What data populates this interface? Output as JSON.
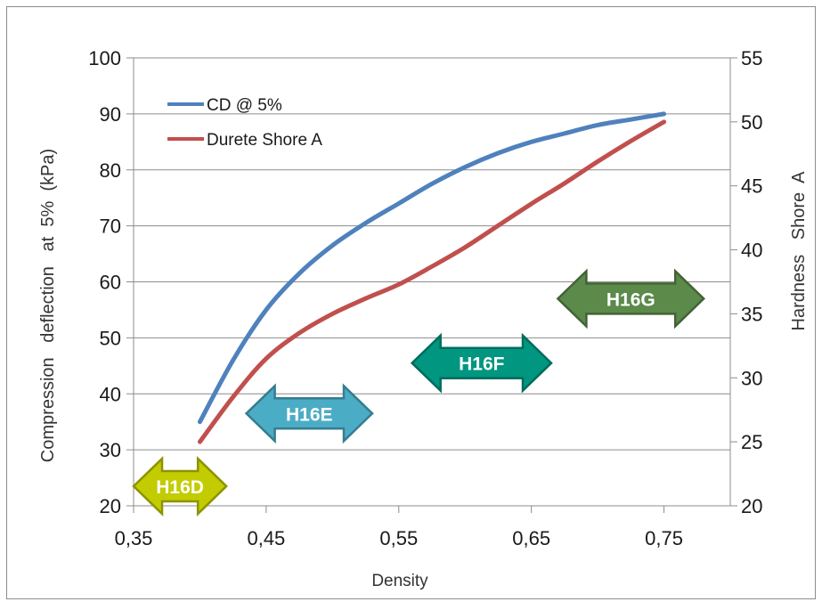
{
  "chart_data": {
    "type": "line",
    "xlabel": "Density",
    "ylabel_left": "Compression   deflection   at  5%  (kPa)",
    "ylabel_right": "Hardness   Shore  A",
    "xlim": [
      0.35,
      0.8
    ],
    "xticks": [
      0.35,
      0.45,
      0.55,
      0.65,
      0.75
    ],
    "xtick_labels": [
      "0,35",
      "0,45",
      "0,55",
      "0,65",
      "0,75"
    ],
    "ylim_left": [
      20,
      100
    ],
    "yticks_left": [
      20,
      30,
      40,
      50,
      60,
      70,
      80,
      90,
      100
    ],
    "ytick_labels_left": [
      "20",
      "30",
      "40",
      "50",
      "60",
      "70",
      "80",
      "90",
      "100"
    ],
    "ylim_right": [
      20,
      55
    ],
    "yticks_right": [
      20,
      25,
      30,
      35,
      40,
      45,
      50,
      55
    ],
    "ytick_labels_right": [
      "20",
      "25",
      "30",
      "35",
      "40",
      "45",
      "50",
      "55"
    ],
    "grid": "horizontal",
    "legend_position": "top-left",
    "series": [
      {
        "name": "CD @ 5%",
        "axis": "left",
        "color": "#4F81BD",
        "x": [
          0.4,
          0.425,
          0.45,
          0.475,
          0.5,
          0.525,
          0.55,
          0.575,
          0.6,
          0.625,
          0.65,
          0.675,
          0.7,
          0.725,
          0.75
        ],
        "y": [
          35,
          46,
          55,
          61.5,
          66.5,
          70.5,
          74,
          77.5,
          80.5,
          83,
          85,
          86.5,
          88,
          89,
          90
        ]
      },
      {
        "name": "Durete Shore A",
        "axis": "right",
        "color": "#C0504D",
        "x": [
          0.4,
          0.425,
          0.45,
          0.475,
          0.5,
          0.525,
          0.55,
          0.575,
          0.6,
          0.625,
          0.65,
          0.675,
          0.7,
          0.725,
          0.75
        ],
        "y": [
          25,
          28.5,
          31.5,
          33.5,
          35,
          36.2,
          37.3,
          38.7,
          40.2,
          41.9,
          43.6,
          45.2,
          46.9,
          48.5,
          50
        ]
      }
    ],
    "annotations": [
      {
        "label": "H16D",
        "x_start": 0.35,
        "x_end": 0.42,
        "y_left": 23.5,
        "color": "#C3CC00",
        "text_color": "#ffffff"
      },
      {
        "label": "H16E",
        "x_start": 0.435,
        "x_end": 0.53,
        "y_left": 36.5,
        "color": "#4BACC6",
        "text_color": "#ffffff"
      },
      {
        "label": "H16F",
        "x_start": 0.56,
        "x_end": 0.665,
        "y_left": 45.5,
        "color": "#009680",
        "text_color": "#ffffff"
      },
      {
        "label": "H16G",
        "x_start": 0.67,
        "x_end": 0.78,
        "y_left": 57,
        "color": "#5B8A4A",
        "text_color": "#ffffff"
      }
    ]
  }
}
